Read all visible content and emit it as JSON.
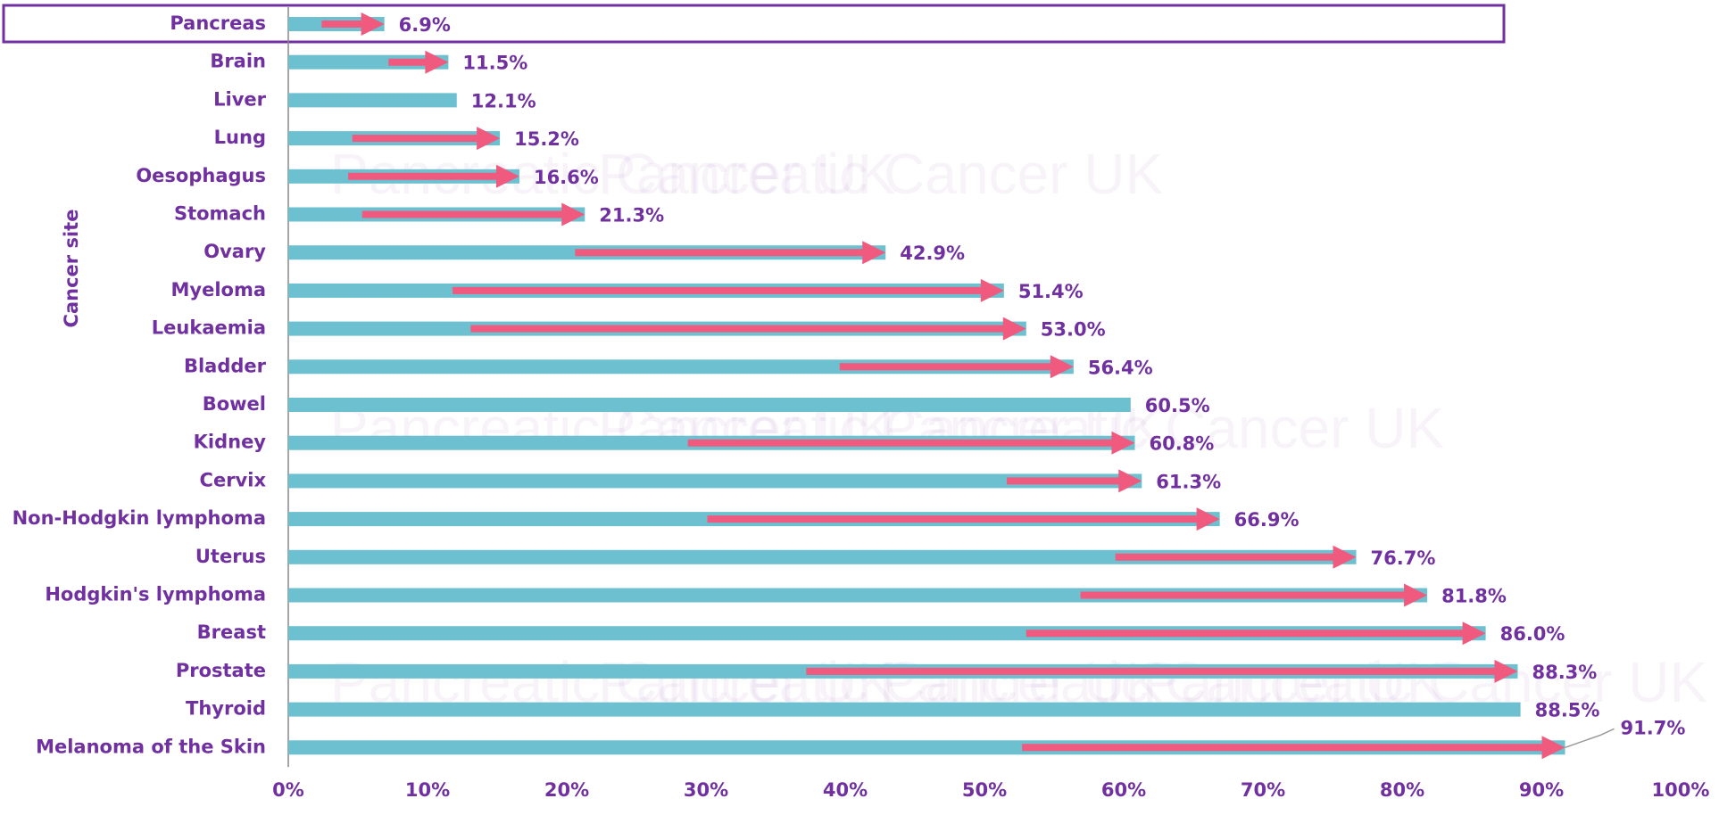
{
  "chart_data": {
    "type": "arrow-bar",
    "y_label": "Cancer site",
    "watermark": "Pancreatic Cancer UK",
    "categories": [
      "Pancreas",
      "Brain",
      "Liver",
      "Lung",
      "Oesophagus",
      "Stomach",
      "Ovary",
      "Myeloma",
      "Leukaemia",
      "Bladder",
      "Bowel",
      "Kidney",
      "Cervix",
      "Non-Hodgkin lymphoma",
      "Uterus",
      "Hodgkin's lymphoma",
      "Breast",
      "Prostate",
      "Thyroid",
      "Melanoma of the Skin"
    ],
    "series": [
      {
        "color": "#6cc0d0",
        "values": [
          6.9,
          11.5,
          12.1,
          15.2,
          16.6,
          21.3,
          42.9,
          51.4,
          53.0,
          56.4,
          60.5,
          60.8,
          61.3,
          66.9,
          76.7,
          81.8,
          86.0,
          88.3,
          88.5,
          91.7
        ],
        "value_labels": [
          "6.9%",
          "11.5%",
          "12.1%",
          "15.2%",
          "16.6%",
          "21.3%",
          "42.9%",
          "51.4%",
          "53.0%",
          "56.4%",
          "60.5%",
          "60.8%",
          "61.3%",
          "66.9%",
          "76.7%",
          "81.8%",
          "86.0%",
          "88.3%",
          "88.5%",
          "91.7%"
        ]
      },
      {
        "color": "#ef5a7e",
        "values": [
          2.4,
          7.2,
          null,
          4.6,
          4.3,
          5.3,
          20.6,
          11.8,
          13.1,
          39.6,
          null,
          28.7,
          51.6,
          30.1,
          59.4,
          56.9,
          53.0,
          37.2,
          null,
          52.7
        ]
      }
    ],
    "xlim": [
      0,
      100
    ],
    "xticks": [
      {
        "value": 0,
        "label": "0%"
      },
      {
        "value": 10,
        "label": "10%"
      },
      {
        "value": 20,
        "label": "20%"
      },
      {
        "value": 30,
        "label": "30%"
      },
      {
        "value": 40,
        "label": "40%"
      },
      {
        "value": 50,
        "label": "50%"
      },
      {
        "value": 60,
        "label": "60%"
      },
      {
        "value": 70,
        "label": "70%"
      },
      {
        "value": 80,
        "label": "80%"
      },
      {
        "value": 90,
        "label": "90%"
      },
      {
        "value": 100,
        "label": "100%"
      }
    ]
  }
}
